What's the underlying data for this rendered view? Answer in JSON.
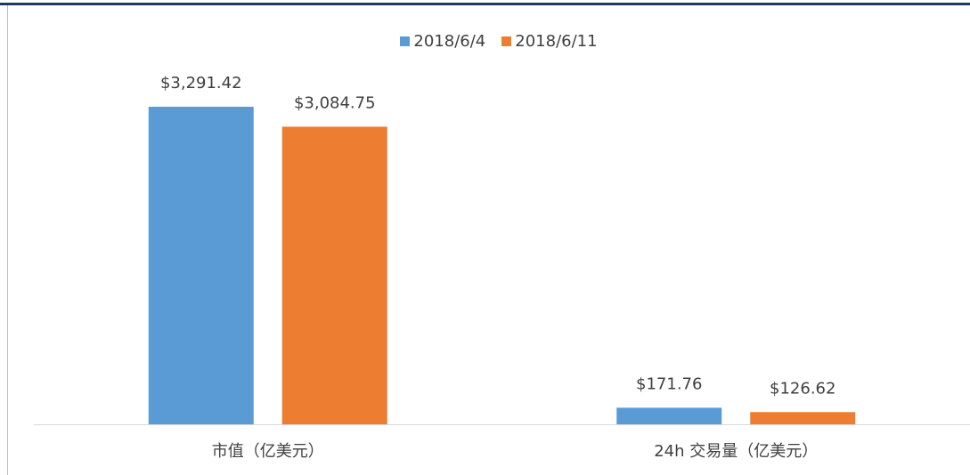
{
  "chart_data": {
    "type": "bar",
    "categories": [
      "市值（亿美元）",
      "24h 交易量（亿美元）"
    ],
    "series": [
      {
        "name": "2018/6/4",
        "color": "#5b9bd5",
        "values": [
          3291.42,
          171.76
        ],
        "value_labels": [
          "$3,291.42",
          "$171.76"
        ]
      },
      {
        "name": "2018/6/11",
        "color": "#ed7d31",
        "values": [
          3084.75,
          126.62
        ],
        "value_labels": [
          "$3,084.75",
          "$126.62"
        ]
      }
    ],
    "legend": "top"
  }
}
